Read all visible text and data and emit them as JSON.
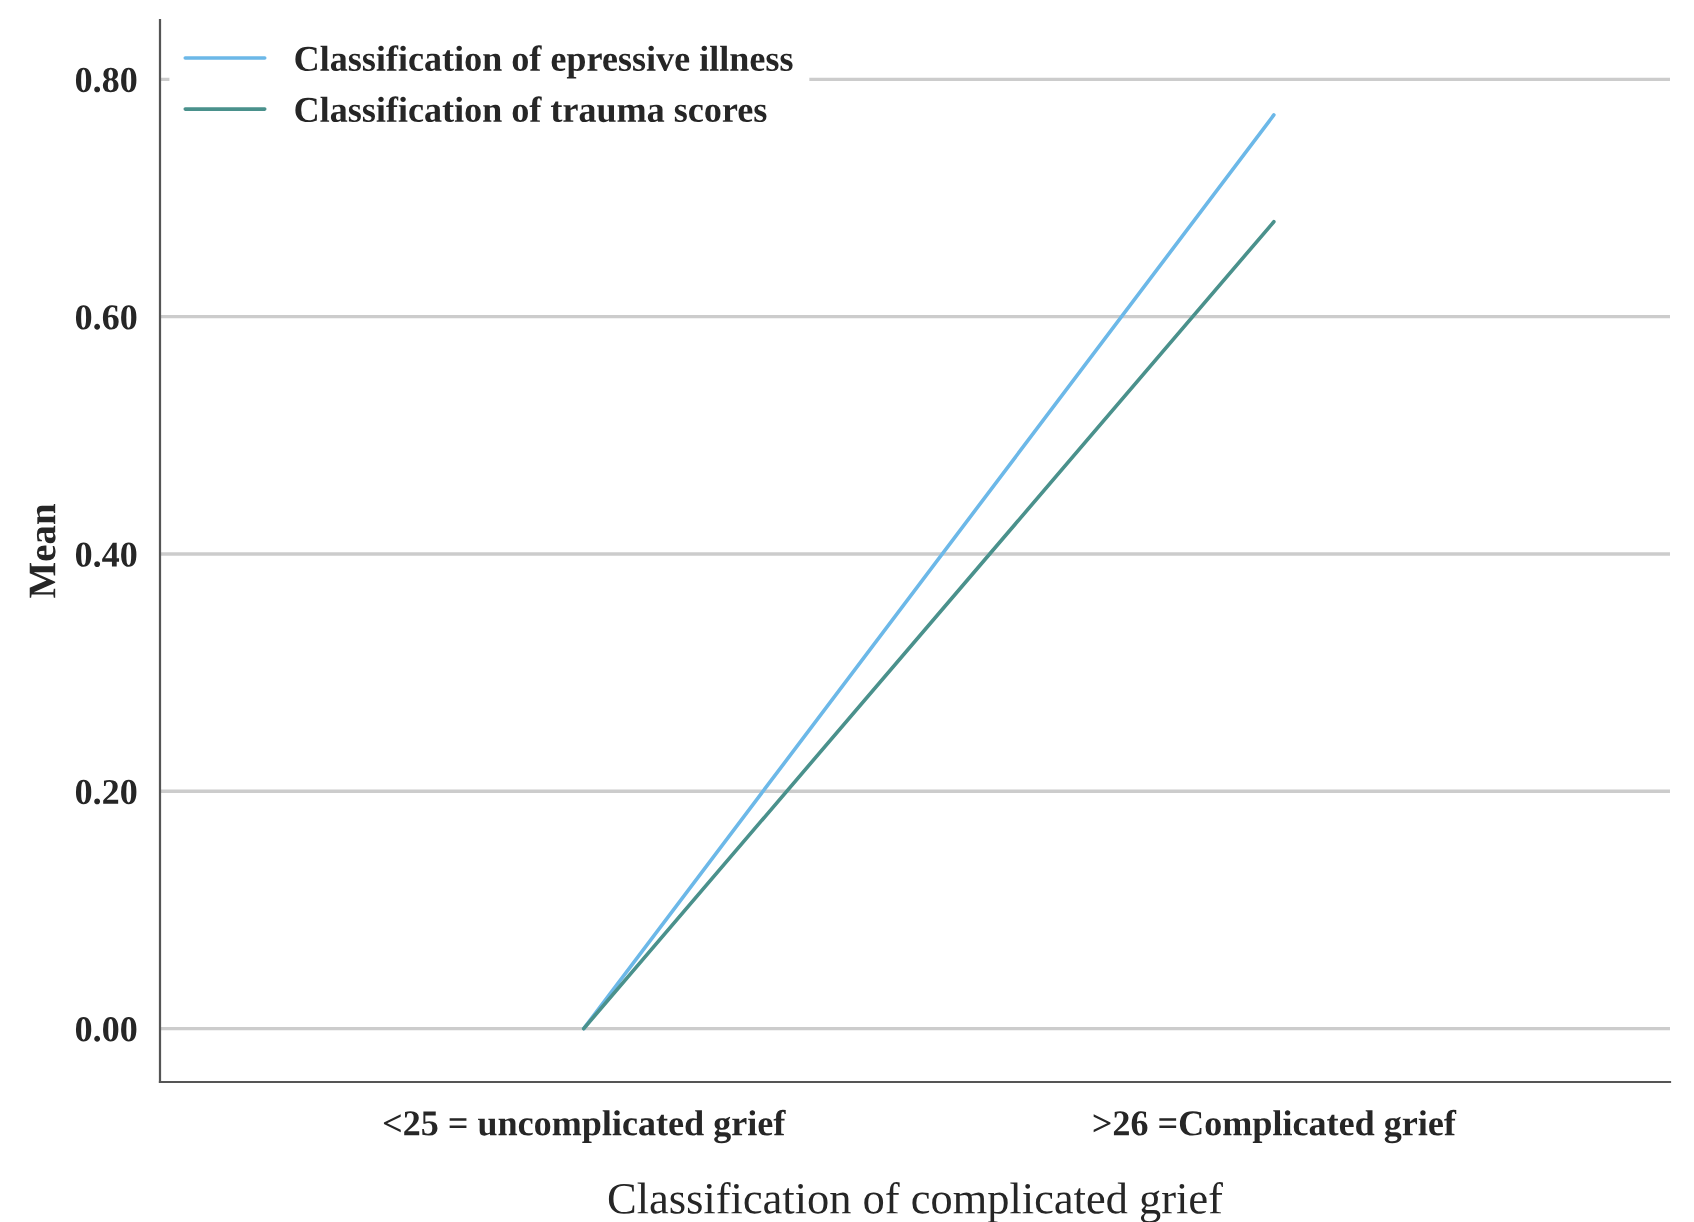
{
  "chart_data": {
    "type": "line",
    "xlabel": "Classification of complicated grief",
    "ylabel": "Mean",
    "categories": [
      "<25 = uncomplicated grief",
      ">26 =Complicated grief"
    ],
    "series": [
      {
        "name": "Classification of epressive illness",
        "color": "#6cb8e8",
        "values": [
          0.0,
          0.77
        ]
      },
      {
        "name": "Classification of trauma scores",
        "color": "#4a918c",
        "values": [
          0.0,
          0.68
        ]
      }
    ],
    "ylim": [
      -0.045,
      0.85
    ],
    "yticks": [
      {
        "value": 0,
        "label": "0.00"
      },
      {
        "value": 0.2,
        "label": "0.20"
      },
      {
        "value": 0.4,
        "label": "0.40"
      },
      {
        "value": 0.6,
        "label": "0.60"
      },
      {
        "value": 0.8,
        "label": "0.80"
      }
    ],
    "grid": "y",
    "legend": "top left",
    "marker": "none",
    "line_style": "solid"
  }
}
